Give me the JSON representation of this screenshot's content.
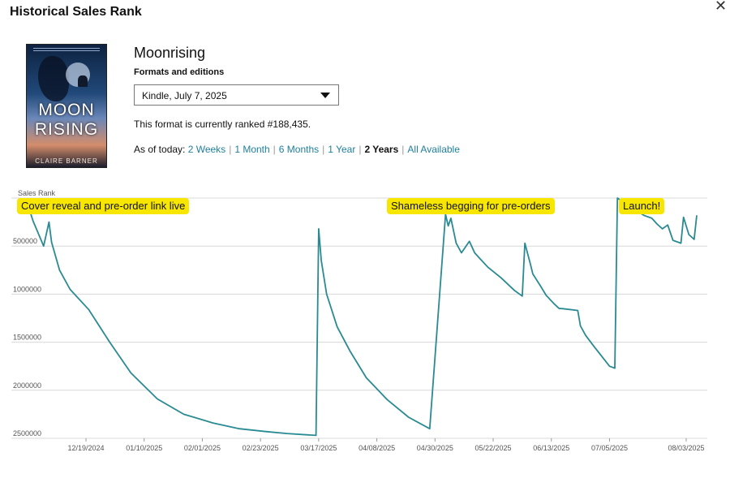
{
  "dialog": {
    "title": "Historical Sales Rank",
    "close_glyph": "✕"
  },
  "book": {
    "title": "Moonrising",
    "cover": {
      "title_line1": "MOON",
      "title_line2": "RISING",
      "author": "CLAIRE BARNER"
    },
    "formats_label": "Formats and editions",
    "selected_format": "Kindle, July 7, 2025",
    "rank_text": "This format is currently ranked #188,435."
  },
  "range": {
    "label": "As of today:",
    "options": [
      {
        "label": "2 Weeks",
        "active": false
      },
      {
        "label": "1 Month",
        "active": false
      },
      {
        "label": "6 Months",
        "active": false
      },
      {
        "label": "1 Year",
        "active": false
      },
      {
        "label": "2 Years",
        "active": true
      },
      {
        "label": "All Available",
        "active": false
      }
    ]
  },
  "annotations": {
    "cover_reveal": "Cover reveal and pre-order link live",
    "begging": "Shameless begging for pre-orders",
    "launch": "Launch!"
  },
  "chart_data": {
    "type": "line",
    "title": "",
    "ylabel": "Sales Rank",
    "xlabel": "",
    "y_inverted": true,
    "ylim": [
      0,
      2500000
    ],
    "y_ticks": [
      500000,
      1000000,
      1500000,
      2000000,
      2500000
    ],
    "x_ticks": [
      "12/19/2024",
      "01/10/2025",
      "02/01/2025",
      "02/23/2025",
      "03/17/2025",
      "04/08/2025",
      "04/30/2025",
      "05/22/2025",
      "06/13/2025",
      "07/05/2025",
      "08/03/2025"
    ],
    "grid": true,
    "line_color": "#2a8a93",
    "series": [
      {
        "x": [
          "2024-11-27",
          "2024-11-29",
          "2024-12-03",
          "2024-12-05",
          "2024-12-06",
          "2024-12-09",
          "2024-12-13",
          "2024-12-20",
          "2024-12-28",
          "2025-01-05",
          "2025-01-15",
          "2025-01-25",
          "2025-02-05",
          "2025-02-15",
          "2025-02-25",
          "2025-03-05",
          "2025-03-16",
          "2025-03-17",
          "2025-03-18",
          "2025-03-20",
          "2025-03-24",
          "2025-03-29",
          "2025-04-04",
          "2025-04-12",
          "2025-04-20",
          "2025-04-28",
          "2025-05-04",
          "2025-05-05",
          "2025-05-06",
          "2025-05-08",
          "2025-05-10",
          "2025-05-13",
          "2025-05-15",
          "2025-05-17",
          "2025-05-20",
          "2025-05-25",
          "2025-05-30",
          "2025-06-02",
          "2025-06-03",
          "2025-06-05",
          "2025-06-06",
          "2025-06-09",
          "2025-06-11",
          "2025-06-14",
          "2025-06-16",
          "2025-06-17",
          "2025-06-23",
          "2025-06-24",
          "2025-06-26",
          "2025-06-29",
          "2025-07-05",
          "2025-07-07",
          "2025-07-08",
          "2025-07-10",
          "2025-07-14",
          "2025-07-18",
          "2025-07-21",
          "2025-07-23",
          "2025-07-25",
          "2025-07-27",
          "2025-07-29",
          "2025-08-01",
          "2025-08-02",
          "2025-08-04",
          "2025-08-06",
          "2025-08-07"
        ],
        "y": [
          70000,
          240000,
          500000,
          250000,
          460000,
          750000,
          950000,
          1160000,
          1500000,
          1820000,
          2090000,
          2250000,
          2340000,
          2400000,
          2430000,
          2450000,
          2470000,
          320000,
          650000,
          1000000,
          1340000,
          1600000,
          1870000,
          2100000,
          2280000,
          2400000,
          170000,
          290000,
          210000,
          470000,
          570000,
          450000,
          570000,
          630000,
          720000,
          830000,
          960000,
          1020000,
          470000,
          680000,
          790000,
          920000,
          1010000,
          1100000,
          1150000,
          1150000,
          1170000,
          1330000,
          1430000,
          1540000,
          1750000,
          1770000,
          0,
          40000,
          110000,
          180000,
          210000,
          270000,
          320000,
          280000,
          440000,
          470000,
          200000,
          380000,
          430000,
          180000
        ]
      }
    ]
  }
}
